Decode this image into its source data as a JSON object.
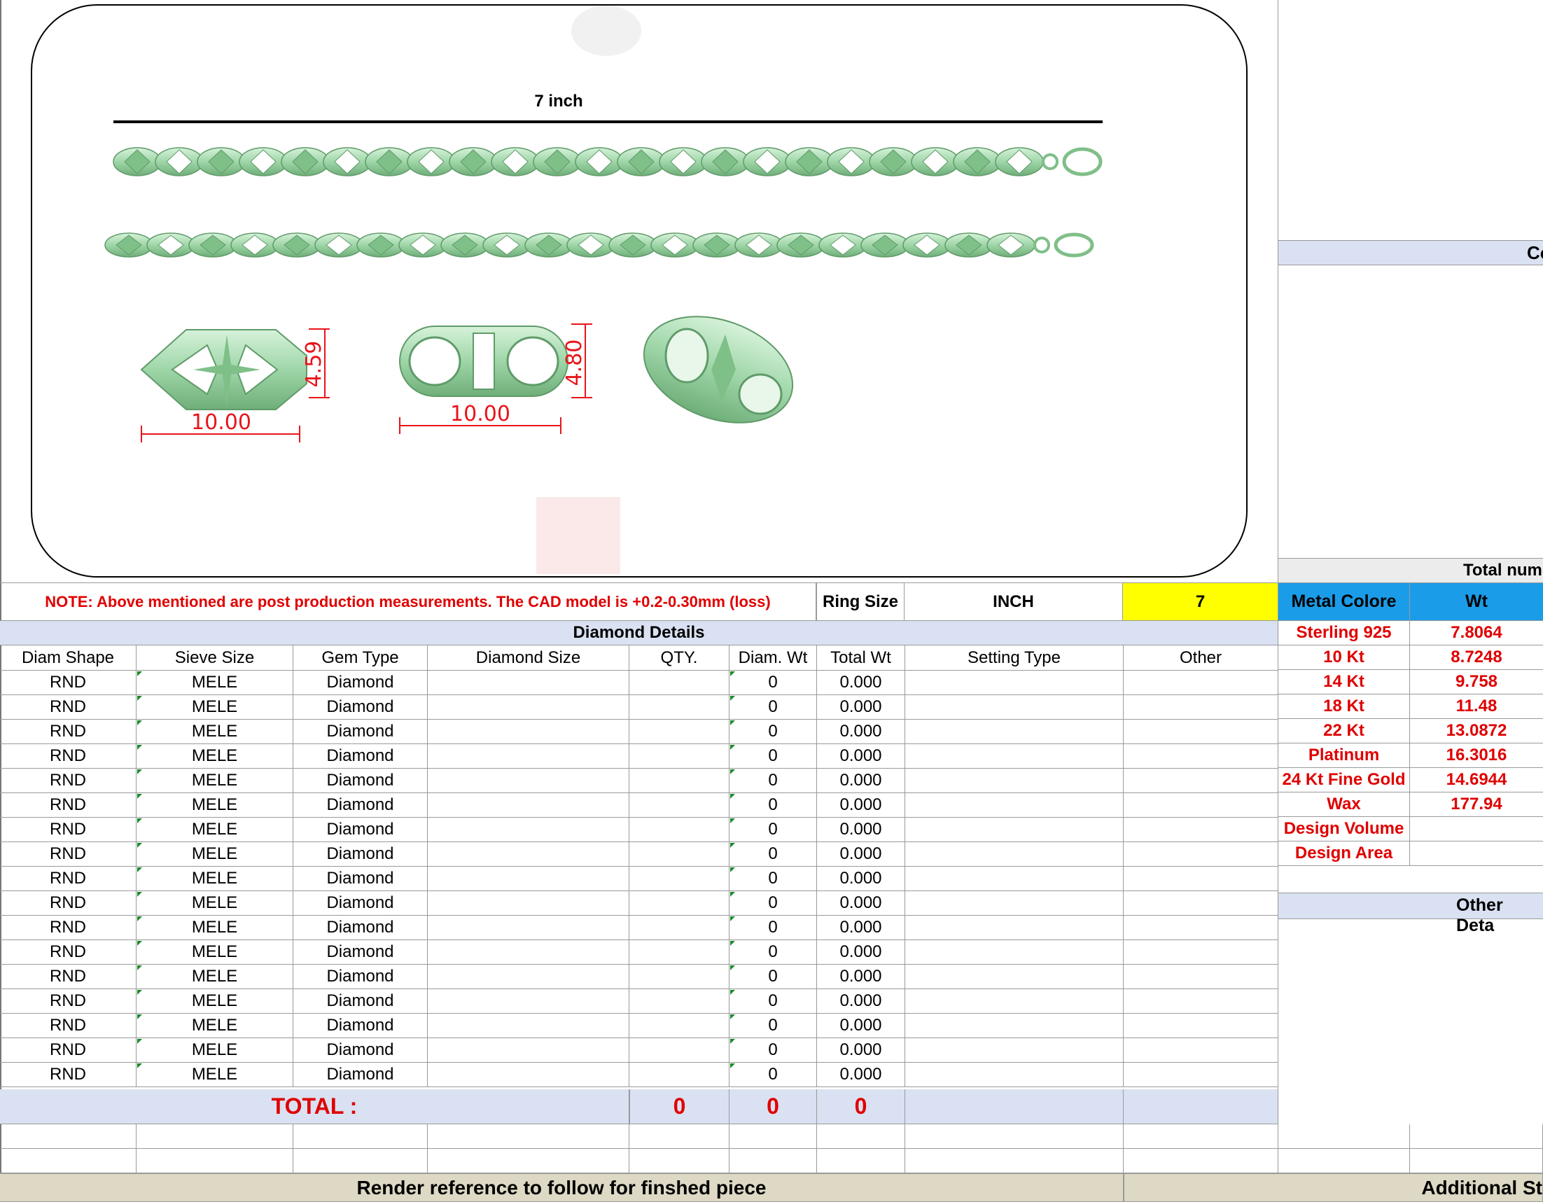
{
  "drawing": {
    "length_label": "7 inch",
    "dims": [
      {
        "width": "10.00",
        "height": "4.59"
      },
      {
        "width": "10.00",
        "height": "4.80"
      }
    ]
  },
  "note_row": {
    "note": "NOTE: Above mentioned are post production measurements. The CAD model is +0.2-0.30mm (loss)",
    "ring_size_label": "Ring Size",
    "unit": "INCH",
    "size_value": "7",
    "size_highlight_color": "#ffff00"
  },
  "diamond_details": {
    "title": "Diamond Details",
    "columns": [
      "Diam Shape",
      "Sieve Size",
      "Gem Type",
      "Diamond Size",
      "QTY.",
      "Diam. Wt",
      "Total Wt",
      "Setting Type",
      "Other"
    ],
    "rows": [
      [
        "RND",
        "MELE",
        "Diamond",
        "",
        "",
        "0",
        "0.000",
        "",
        ""
      ],
      [
        "RND",
        "MELE",
        "Diamond",
        "",
        "",
        "0",
        "0.000",
        "",
        ""
      ],
      [
        "RND",
        "MELE",
        "Diamond",
        "",
        "",
        "0",
        "0.000",
        "",
        ""
      ],
      [
        "RND",
        "MELE",
        "Diamond",
        "",
        "",
        "0",
        "0.000",
        "",
        ""
      ],
      [
        "RND",
        "MELE",
        "Diamond",
        "",
        "",
        "0",
        "0.000",
        "",
        ""
      ],
      [
        "RND",
        "MELE",
        "Diamond",
        "",
        "",
        "0",
        "0.000",
        "",
        ""
      ],
      [
        "RND",
        "MELE",
        "Diamond",
        "",
        "",
        "0",
        "0.000",
        "",
        ""
      ],
      [
        "RND",
        "MELE",
        "Diamond",
        "",
        "",
        "0",
        "0.000",
        "",
        ""
      ],
      [
        "RND",
        "MELE",
        "Diamond",
        "",
        "",
        "0",
        "0.000",
        "",
        ""
      ],
      [
        "RND",
        "MELE",
        "Diamond",
        "",
        "",
        "0",
        "0.000",
        "",
        ""
      ],
      [
        "RND",
        "MELE",
        "Diamond",
        "",
        "",
        "0",
        "0.000",
        "",
        ""
      ],
      [
        "RND",
        "MELE",
        "Diamond",
        "",
        "",
        "0",
        "0.000",
        "",
        ""
      ],
      [
        "RND",
        "MELE",
        "Diamond",
        "",
        "",
        "0",
        "0.000",
        "",
        ""
      ],
      [
        "RND",
        "MELE",
        "Diamond",
        "",
        "",
        "0",
        "0.000",
        "",
        ""
      ],
      [
        "RND",
        "MELE",
        "Diamond",
        "",
        "",
        "0",
        "0.000",
        "",
        ""
      ],
      [
        "RND",
        "MELE",
        "Diamond",
        "",
        "",
        "0",
        "0.000",
        "",
        ""
      ],
      [
        "RND",
        "MELE",
        "Diamond",
        "",
        "",
        "0",
        "0.000",
        "",
        ""
      ]
    ],
    "total_label": "TOTAL :",
    "total_qty": "0",
    "total_diam_wt": "0",
    "total_wt": "0"
  },
  "metal": {
    "header_metal": "Metal Colore",
    "header_wt": "Wt",
    "header_color": "#1b9ce8",
    "rows": [
      [
        "Sterling 925",
        "7.8064"
      ],
      [
        "10 Kt",
        "8.7248"
      ],
      [
        "14 Kt",
        "9.758"
      ],
      [
        "18 Kt",
        "11.48"
      ],
      [
        "22 Kt",
        "13.0872"
      ],
      [
        "Platinum",
        "16.3016"
      ],
      [
        "24 Kt Fine Gold",
        "14.6944"
      ],
      [
        "Wax",
        "177.94"
      ],
      [
        "Design Volume",
        ""
      ],
      [
        "Design Area",
        ""
      ]
    ]
  },
  "right_column": {
    "co_label": "Co",
    "total_num_label": "Total num",
    "other_details_label": "Other Deta"
  },
  "footer": {
    "render_reference": "Render reference to follow for finshed piece",
    "additional": "Additional St"
  },
  "colors": {
    "band": "#d9e1f2",
    "footer_band": "#ddd9c4",
    "red_text": "#e00000",
    "metal_green": "#a8dcb0"
  }
}
